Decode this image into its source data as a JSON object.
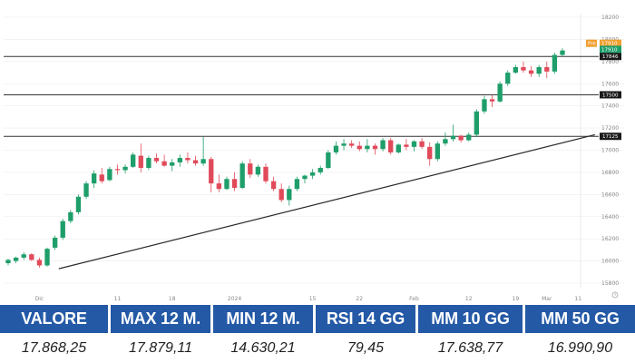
{
  "chart_data": {
    "type": "candlestick",
    "ylim": [
      15800,
      18200
    ],
    "y_ticks": [
      15800,
      16000,
      16200,
      16400,
      16600,
      16800,
      17000,
      17200,
      17400,
      17600,
      17800,
      18000,
      18200
    ],
    "x_ticks": [
      "Dic",
      "11",
      "18",
      "2024",
      "15",
      "22",
      "Feb",
      "12",
      "19",
      "Mar",
      "11"
    ],
    "horizontal_levels": [
      17846,
      17500,
      17125
    ],
    "trendline": [
      {
        "x": 3,
        "y": 15930
      },
      {
        "x": 74,
        "y": 17140
      }
    ],
    "price_tags": [
      {
        "label": "Pre",
        "value": "17910",
        "color": "#f0a030"
      },
      {
        "value": "17910",
        "sub": "15:40:31",
        "color": "#1e9e6a"
      },
      {
        "value": "17846",
        "color": "#1a1a1a"
      },
      {
        "value": "17500",
        "color": "#1a1a1a"
      },
      {
        "value": "17125",
        "color": "#1a1a1a"
      }
    ],
    "candles": [
      [
        15980,
        16020,
        15960,
        16010
      ],
      [
        16000,
        16040,
        15980,
        16030
      ],
      [
        16030,
        16080,
        16010,
        16060
      ],
      [
        16060,
        16070,
        16000,
        16010
      ],
      [
        16010,
        16030,
        15940,
        15960
      ],
      [
        15960,
        16120,
        15950,
        16110
      ],
      [
        16120,
        16230,
        16100,
        16210
      ],
      [
        16210,
        16380,
        16190,
        16360
      ],
      [
        16360,
        16460,
        16340,
        16440
      ],
      [
        16440,
        16600,
        16420,
        16580
      ],
      [
        16580,
        16720,
        16560,
        16700
      ],
      [
        16700,
        16820,
        16660,
        16790
      ],
      [
        16780,
        16840,
        16700,
        16720
      ],
      [
        16730,
        16850,
        16720,
        16830
      ],
      [
        16830,
        16870,
        16780,
        16820
      ],
      [
        16820,
        16870,
        16790,
        16850
      ],
      [
        16850,
        16980,
        16840,
        16960
      ],
      [
        16950,
        17060,
        16800,
        16840
      ],
      [
        16840,
        16950,
        16820,
        16930
      ],
      [
        16930,
        16970,
        16880,
        16900
      ],
      [
        16900,
        16960,
        16850,
        16860
      ],
      [
        16860,
        16920,
        16810,
        16890
      ],
      [
        16890,
        16960,
        16850,
        16930
      ],
      [
        16930,
        16980,
        16880,
        16910
      ],
      [
        16910,
        16950,
        16860,
        16880
      ],
      [
        16880,
        17120,
        16860,
        16920
      ],
      [
        16920,
        16940,
        16620,
        16700
      ],
      [
        16700,
        16780,
        16620,
        16650
      ],
      [
        16650,
        16760,
        16640,
        16740
      ],
      [
        16740,
        16800,
        16630,
        16660
      ],
      [
        16660,
        16900,
        16650,
        16880
      ],
      [
        16880,
        16920,
        16750,
        16780
      ],
      [
        16780,
        16870,
        16760,
        16850
      ],
      [
        16850,
        16880,
        16700,
        16720
      ],
      [
        16720,
        16760,
        16630,
        16650
      ],
      [
        16650,
        16700,
        16530,
        16550
      ],
      [
        16550,
        16680,
        16500,
        16650
      ],
      [
        16650,
        16760,
        16630,
        16740
      ],
      [
        16740,
        16780,
        16700,
        16770
      ],
      [
        16770,
        16830,
        16740,
        16800
      ],
      [
        16800,
        16860,
        16780,
        16840
      ],
      [
        16840,
        17000,
        16830,
        16980
      ],
      [
        16980,
        17080,
        16960,
        17040
      ],
      [
        17040,
        17100,
        17000,
        17060
      ],
      [
        17060,
        17090,
        17020,
        17040
      ],
      [
        17040,
        17080,
        16990,
        17010
      ],
      [
        17010,
        17100,
        16980,
        17040
      ],
      [
        17040,
        17060,
        16960,
        17010
      ],
      [
        17010,
        17110,
        16990,
        17090
      ],
      [
        17090,
        17110,
        16960,
        16980
      ],
      [
        16980,
        17060,
        16970,
        17050
      ],
      [
        17050,
        17100,
        17000,
        17030
      ],
      [
        17030,
        17090,
        16990,
        17080
      ],
      [
        17080,
        17110,
        17010,
        17030
      ],
      [
        17030,
        17070,
        16860,
        16920
      ],
      [
        16920,
        17080,
        16900,
        17060
      ],
      [
        17060,
        17160,
        17040,
        17100
      ],
      [
        17100,
        17230,
        17080,
        17130
      ],
      [
        17130,
        17140,
        17070,
        17090
      ],
      [
        17090,
        17160,
        17080,
        17140
      ],
      [
        17140,
        17370,
        17120,
        17350
      ],
      [
        17350,
        17490,
        17330,
        17460
      ],
      [
        17460,
        17500,
        17390,
        17440
      ],
      [
        17440,
        17620,
        17430,
        17600
      ],
      [
        17600,
        17720,
        17580,
        17700
      ],
      [
        17700,
        17770,
        17690,
        17750
      ],
      [
        17750,
        17800,
        17700,
        17720
      ],
      [
        17720,
        17760,
        17660,
        17690
      ],
      [
        17690,
        17770,
        17660,
        17750
      ],
      [
        17750,
        17800,
        17650,
        17710
      ],
      [
        17710,
        17880,
        17690,
        17860
      ],
      [
        17860,
        17920,
        17850,
        17900
      ]
    ]
  },
  "stats": [
    {
      "label": "VALORE",
      "value": "17.868,25"
    },
    {
      "label": "MAX 12 M.",
      "value": "17.879,11"
    },
    {
      "label": "MIN 12 M.",
      "value": "14.630,21"
    },
    {
      "label": "RSI 14 GG",
      "value": "79,45"
    },
    {
      "label": "MM 10 GG",
      "value": "17.638,77"
    },
    {
      "label": "MM 50 GG",
      "value": "16.990,90"
    }
  ],
  "colors": {
    "up": "#1e9e6a",
    "down": "#e04a5a",
    "header_bg": "#2459a6",
    "grid": "#ececec",
    "level": "#333333",
    "trend": "#2a2a2a"
  },
  "icons": [
    "clock-icon"
  ]
}
